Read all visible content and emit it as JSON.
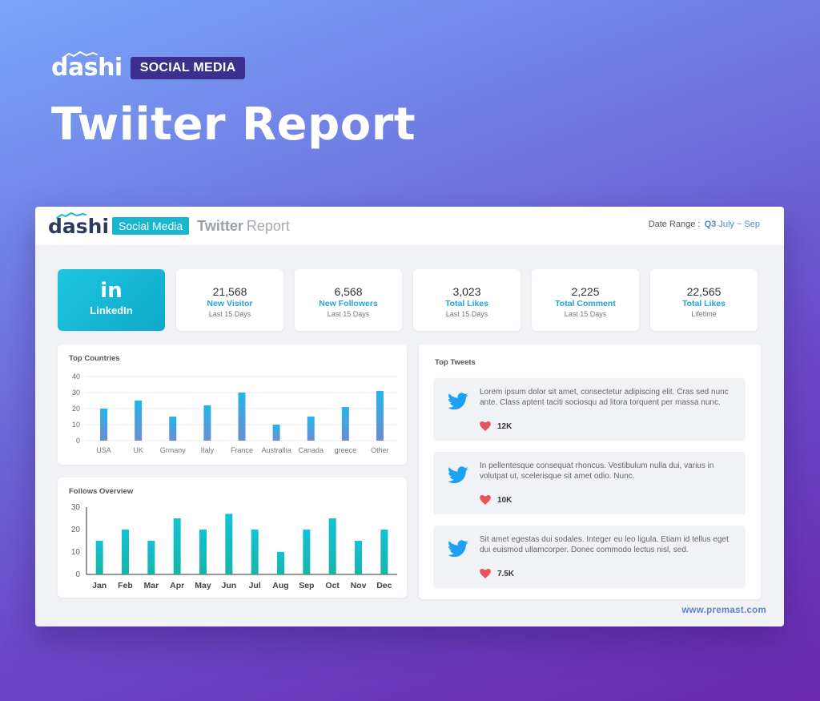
{
  "hero": {
    "brand": "dashi",
    "badge": "SOCIAL MEDIA",
    "title": "Twiiter Report"
  },
  "card": {
    "header": {
      "brand": "dashi",
      "badge": "Social Media",
      "title_strong": "Twitter",
      "title_light": "Report",
      "date_range_label": "Date Range :",
      "date_range_quarter": "Q3",
      "date_range_months": "July ~ Sep"
    },
    "linkedin": {
      "icon_text": "in",
      "label": "LinkedIn"
    },
    "stats": [
      {
        "value": "21,568",
        "label": "New Visitor",
        "sub": "Last 15 Days"
      },
      {
        "value": "6,568",
        "label": "New Followers",
        "sub": "Last 15 Days"
      },
      {
        "value": "3,023",
        "label": "Total Likes",
        "sub": "Last 15 Days"
      },
      {
        "value": "2,225",
        "label": "Total Comment",
        "sub": "Last 15 Days"
      },
      {
        "value": "22,565",
        "label": "Total Likes",
        "sub": "Lifetime"
      }
    ],
    "top_tweets": {
      "title": "Top Tweets",
      "items": [
        {
          "text": "Lorem ipsum dolor sit amet, consectetur adipiscing elit. Cras sed nunc ante. Class aptent taciti sociosqu ad litora torquent per massa nunc.",
          "likes": "12K"
        },
        {
          "text": "In pellentesque consequat rhoncus. Vestibulum nulla dui, varius in volutpat ut, scelerisque sit amet odio. Nunc.",
          "likes": "10K"
        },
        {
          "text": "Sit amet egestas dui sodales. Integer eu leo ligula. Etiam id tellus eget dui euismod ullamcorper. Donec commodo lectus nisl, sed.",
          "likes": "7.5K"
        }
      ]
    },
    "footer_url": "www.premast.com"
  },
  "colors": {
    "accent": "#17b7cf",
    "link_blue": "#21a6d9",
    "heart": "#e8535b",
    "twitter": "#1da1f2"
  },
  "chart_data": [
    {
      "type": "bar",
      "title": "Top Countries",
      "categories": [
        "USA",
        "UK",
        "Grmany",
        "Italy",
        "France",
        "Australlia",
        "Canada",
        "greece",
        "Other"
      ],
      "values": [
        20,
        25,
        15,
        22,
        30,
        10,
        15,
        21,
        31
      ],
      "yticks": [
        0,
        10,
        20,
        30,
        40
      ],
      "ylim": [
        0,
        40
      ],
      "grid": true,
      "legend": "none"
    },
    {
      "type": "bar",
      "title": "Follows Overview",
      "categories": [
        "Jan",
        "Feb",
        "Mar",
        "Apr",
        "May",
        "Jun",
        "Jul",
        "Aug",
        "Sep",
        "Oct",
        "Nov",
        "Dec"
      ],
      "values": [
        15,
        20,
        15,
        25,
        20,
        27,
        20,
        10,
        20,
        25,
        15,
        20
      ],
      "yticks": [
        0,
        10,
        20,
        30
      ],
      "ylim": [
        0,
        30
      ],
      "grid": false,
      "legend": "none"
    }
  ]
}
